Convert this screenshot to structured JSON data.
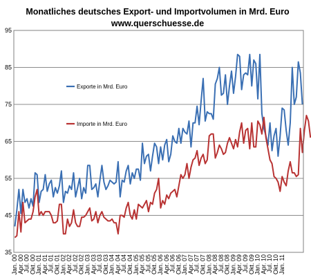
{
  "chart_data": {
    "type": "line",
    "title": "Monatliches deutsches Export- und Importvolumen in Mrd. Euro",
    "subtitle": "www.querschuesse.de",
    "xlabel": "",
    "ylabel": "",
    "ylim": [
      35,
      95
    ],
    "yticks": [
      35,
      45,
      55,
      65,
      75,
      85,
      95
    ],
    "x_tick_labels": [
      "Jan. 00",
      "Apr. 00",
      "Jul. 00",
      "Okt. 00",
      "Jan. 01",
      "Apr. 01",
      "Jul. 01",
      "Okt. 01",
      "Jan. 02",
      "Apr. 02",
      "Jul. 02",
      "Okt. 02",
      "Jan. 03",
      "Apr. 03",
      "Jul. 03",
      "Okt. 03",
      "Jan. 04",
      "Apr. 04",
      "Jul. 04",
      "Okt. 04",
      "Jan. 05",
      "Apr. 05",
      "Jul. 05",
      "Okt. 05",
      "Jan. 06",
      "Apr. 06",
      "Jul. 06",
      "Okt. 06",
      "Jan. 07",
      "Apr. 07",
      "Jul. 07",
      "Okt. 07",
      "Jan. 08",
      "Apr. 08",
      "Jul. 08",
      "Okt. 08",
      "Jan. 09",
      "Apr. 09",
      "Jul. 09",
      "Okt. 09",
      "Jan. 10",
      "Apr. 10",
      "Jul. 10",
      "Okt. 10",
      "Jan. 11"
    ],
    "grid": "horizontal",
    "legend_placement": "inside-left",
    "series": [
      {
        "name": "Exporte in Mrd. Euro",
        "color": "#3a6fb3",
        "values": [
          42.0,
          46.5,
          52.0,
          45.5,
          52.0,
          48.5,
          49.5,
          47.0,
          49.5,
          47.5,
          56.5,
          56.0,
          48.5,
          51.5,
          52.0,
          56.0,
          51.5,
          53.5,
          54.5,
          50.0,
          52.5,
          51.0,
          53.0,
          57.0,
          48.5,
          51.5,
          51.0,
          53.0,
          52.0,
          56.5,
          50.0,
          52.5,
          55.0,
          49.5,
          52.5,
          51.0,
          58.5,
          58.5,
          52.0,
          52.5,
          53.5,
          50.0,
          54.5,
          58.5,
          54.0,
          52.0,
          53.0,
          54.5,
          54.0,
          53.5,
          54.0,
          59.5,
          50.0,
          54.5,
          54.0,
          57.0,
          58.5,
          53.5,
          56.5,
          55.0,
          57.5,
          57.5,
          54.5,
          64.5,
          59.0,
          61.0,
          61.5,
          57.0,
          61.0,
          64.5,
          63.5,
          59.0,
          63.5,
          60.0,
          64.0,
          65.5,
          59.5,
          61.5,
          66.5,
          65.0,
          64.5,
          68.5,
          64.5,
          68.5,
          67.5,
          67.0,
          70.5,
          63.5,
          70.0,
          70.0,
          74.5,
          69.5,
          76.0,
          82.0,
          70.5,
          73.0,
          72.5,
          72.5,
          71.0,
          80.5,
          82.0,
          85.0,
          77.5,
          78.0,
          83.0,
          75.0,
          80.0,
          84.0,
          78.0,
          82.5,
          88.5,
          88.0,
          79.0,
          83.0,
          83.5,
          83.0,
          88.5,
          80.0,
          87.0,
          86.0,
          76.5,
          88.5,
          72.5,
          68.5,
          66.5,
          64.0,
          70.0,
          62.5,
          66.5,
          68.5,
          61.0,
          66.5,
          74.0,
          73.5,
          68.0,
          64.0,
          70.0,
          85.0,
          75.0,
          77.0,
          86.5,
          83.5,
          75.0
        ]
      },
      {
        "name": "Importe in Mrd. Euro",
        "color": "#b83232",
        "values": [
          39.0,
          39.5,
          46.0,
          40.5,
          48.5,
          43.0,
          43.5,
          44.0,
          44.0,
          46.0,
          50.0,
          52.0,
          45.0,
          46.0,
          45.0,
          46.0,
          46.0,
          46.0,
          45.0,
          43.0,
          43.0,
          43.5,
          48.0,
          48.0,
          40.0,
          40.0,
          44.0,
          42.0,
          43.0,
          46.5,
          43.0,
          42.0,
          42.0,
          44.5,
          44.5,
          45.0,
          46.0,
          47.0,
          43.5,
          44.0,
          46.0,
          43.0,
          45.0,
          46.0,
          44.5,
          44.0,
          43.5,
          43.5,
          44.0,
          43.0,
          43.0,
          40.0,
          45.0,
          45.0,
          44.5,
          47.0,
          48.5,
          45.0,
          44.0,
          46.5,
          44.0,
          48.0,
          47.5,
          47.0,
          48.0,
          49.0,
          46.0,
          48.5,
          48.0,
          51.0,
          52.0,
          55.0,
          47.0,
          49.0,
          48.0,
          50.5,
          49.5,
          51.0,
          51.5,
          52.0,
          50.0,
          53.0,
          56.0,
          55.0,
          56.0,
          59.0,
          55.0,
          58.0,
          60.0,
          60.5,
          62.5,
          58.5,
          60.5,
          61.5,
          59.0,
          60.0,
          66.5,
          67.0,
          67.0,
          60.5,
          62.0,
          64.0,
          63.0,
          61.5,
          62.0,
          64.5,
          66.0,
          64.5,
          63.0,
          65.5,
          63.5,
          67.5,
          70.0,
          64.5,
          68.0,
          68.5,
          63.0,
          70.0,
          63.5,
          63.5,
          70.5,
          69.5,
          67.0,
          71.5,
          66.0,
          63.0,
          60.0,
          59.0,
          55.5,
          55.0,
          54.0,
          51.5,
          55.5,
          54.0,
          53.0,
          57.0,
          59.5,
          56.5,
          56.5,
          55.5,
          56.0,
          68.5,
          62.0,
          68.0,
          72.0,
          70.5,
          66.0
        ]
      }
    ]
  }
}
